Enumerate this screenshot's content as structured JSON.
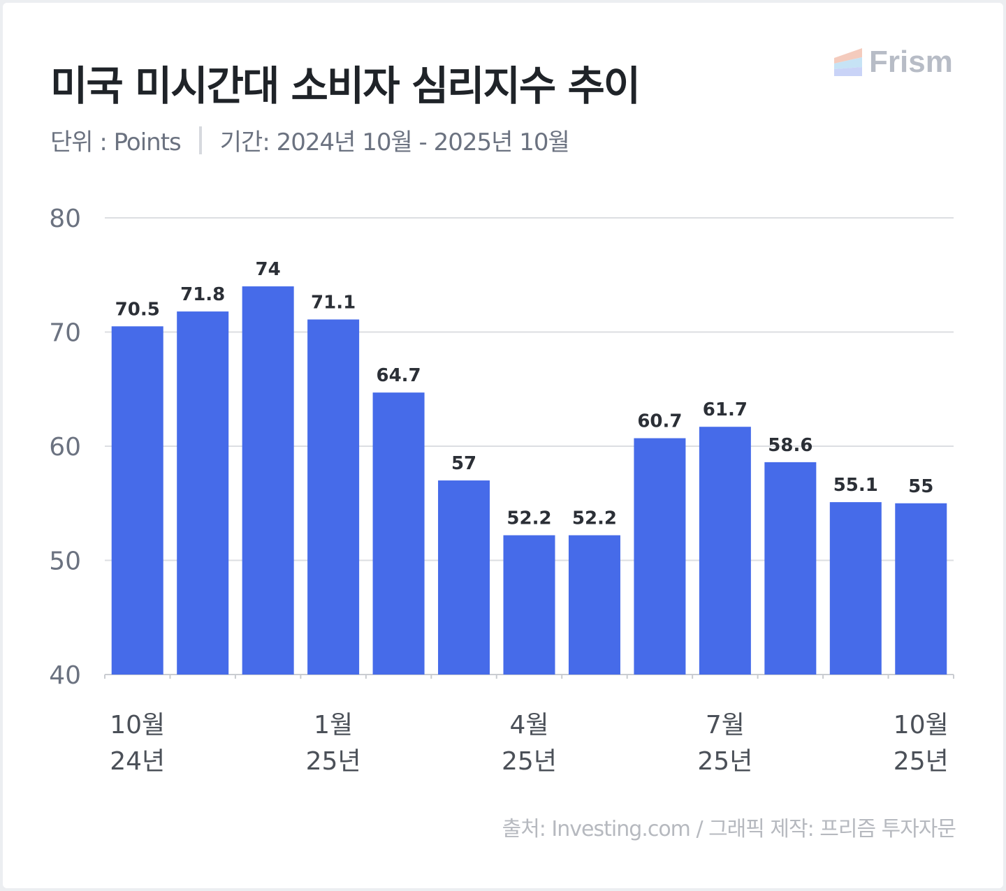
{
  "title": "미국 미시간대 소비자 심리지수 추이",
  "subtitle": {
    "unit": "단위 : Points",
    "period": "기간: 2024년 10월 - 2025년 10월"
  },
  "logo": "Frism",
  "source": "출처: Investing.com / 그래픽 제작: 프리즘 투자자문",
  "colors": {
    "bar": "#466be9",
    "grid": "#dcdee2",
    "axis_text": "#6b7280"
  },
  "chart_data": {
    "type": "bar",
    "title": "미국 미시간대 소비자 심리지수 추이",
    "ylabel": "Points",
    "ylim": [
      40,
      80
    ],
    "yticks": [
      40,
      50,
      60,
      70,
      80
    ],
    "grid": true,
    "categories": [
      "2024-10",
      "2024-11",
      "2024-12",
      "2025-01",
      "2025-02",
      "2025-03",
      "2025-04",
      "2025-05",
      "2025-06",
      "2025-07",
      "2025-08",
      "2025-09",
      "2025-10"
    ],
    "values": [
      70.5,
      71.8,
      74,
      71.1,
      64.7,
      57,
      52.2,
      52.2,
      60.7,
      61.7,
      58.6,
      55.1,
      55
    ],
    "data_labels": [
      "70.5",
      "71.8",
      "74",
      "71.1",
      "64.7",
      "57",
      "52.2",
      "52.2",
      "60.7",
      "61.7",
      "58.6",
      "55.1",
      "55"
    ],
    "xtick_labels": [
      {
        "index": 0,
        "month": "10월",
        "year": "24년"
      },
      {
        "index": 3,
        "month": "1월",
        "year": "25년"
      },
      {
        "index": 6,
        "month": "4월",
        "year": "25년"
      },
      {
        "index": 9,
        "month": "7월",
        "year": "25년"
      },
      {
        "index": 12,
        "month": "10월",
        "year": "25년"
      }
    ]
  }
}
